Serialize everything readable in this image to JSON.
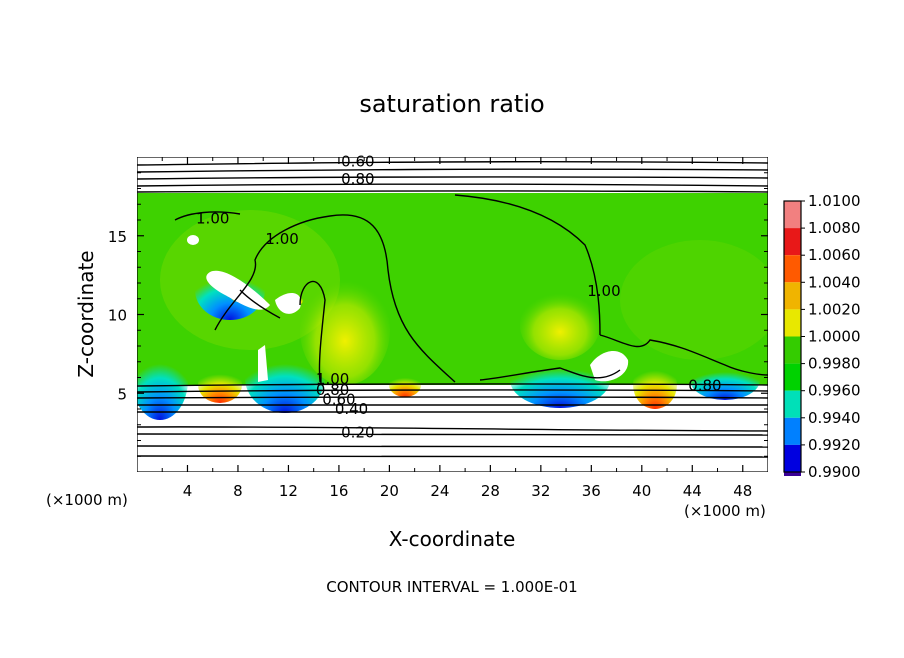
{
  "chart_data": {
    "type": "heatmap",
    "title": "saturation ratio",
    "xlabel": "X-coordinate",
    "ylabel": "Z-coordinate",
    "x_unit": "(×1000 m)",
    "xlim": [
      0,
      50
    ],
    "ylim": [
      0,
      20
    ],
    "x_ticks": [
      4,
      8,
      12,
      16,
      20,
      24,
      28,
      32,
      36,
      40,
      44,
      48
    ],
    "y_ticks": [
      5,
      10,
      15
    ],
    "colorbar": {
      "ticks": [
        "1.0100",
        "1.0080",
        "1.0060",
        "1.0040",
        "1.0020",
        "1.0000",
        "0.9980",
        "0.9960",
        "0.9940",
        "0.9920",
        "0.9900"
      ],
      "colors": [
        "#f28080",
        "#e81818",
        "#ff5a00",
        "#f0b400",
        "#e8e800",
        "#34cc00",
        "#00d200",
        "#00e0b8",
        "#0080ff",
        "#0000e0",
        "#3a0096"
      ]
    },
    "contour_labels": [
      {
        "text": "0.60",
        "x": 17.5,
        "z": 19.7
      },
      {
        "text": "0.80",
        "x": 17.5,
        "z": 18.6
      },
      {
        "text": "1.00",
        "x": 6.0,
        "z": 16.1
      },
      {
        "text": "1.00",
        "x": 11.5,
        "z": 14.8
      },
      {
        "text": "1.00",
        "x": 37.0,
        "z": 11.5
      },
      {
        "text": "1.00",
        "x": 15.5,
        "z": 5.9
      },
      {
        "text": "0.80",
        "x": 15.5,
        "z": 5.2
      },
      {
        "text": "0.60",
        "x": 16.0,
        "z": 4.6
      },
      {
        "text": "0.40",
        "x": 17.0,
        "z": 4.0
      },
      {
        "text": "0.20",
        "x": 17.5,
        "z": 2.5
      },
      {
        "text": "0.80",
        "x": 45.0,
        "z": 5.5
      }
    ],
    "footer": "CONTOUR INTERVAL = 1.000E-01"
  }
}
